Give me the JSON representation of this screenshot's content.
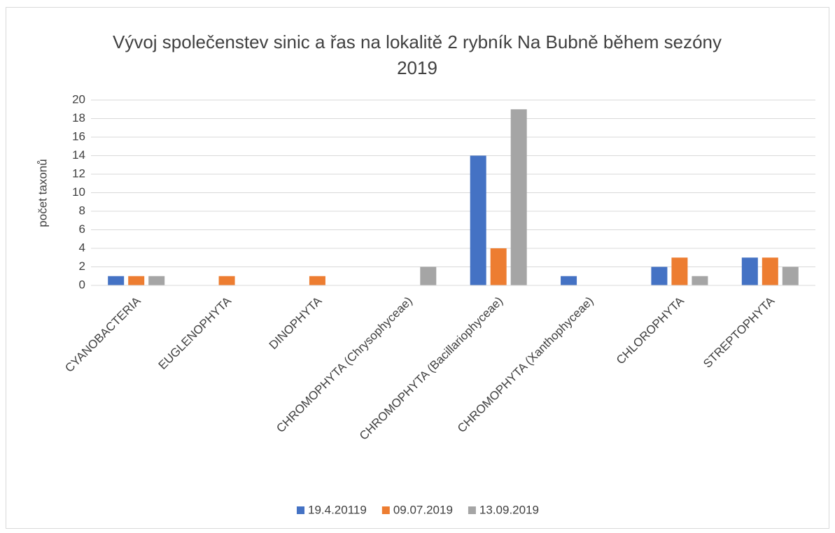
{
  "chart_data": {
    "type": "bar",
    "title": "Vývoj společenstev sinic a řas na lokalitě 2 rybník Na Bubně během sezóny 2019",
    "y_label": "počet taxonů",
    "categories": [
      "CYANOBACTERIA",
      "EUGLENOPHYTA",
      "DINOPHYTA",
      "CHROMOPHYTA (Chrysophyceae)",
      "CHROMOPHYTA (Bacillariophyceae)",
      "CHROMOPHYTA (Xanthophyceae)",
      "CHLOROPHYTA",
      "STREPTOPHYTA"
    ],
    "series": [
      {
        "name": "19.4.20119",
        "color": "#4472c4",
        "values": [
          1,
          0,
          0,
          0,
          14,
          1,
          2,
          3
        ]
      },
      {
        "name": "09.07.2019",
        "color": "#ed7d31",
        "values": [
          1,
          1,
          1,
          0,
          4,
          0,
          3,
          3
        ]
      },
      {
        "name": "13.09.2019",
        "color": "#a5a5a5",
        "values": [
          1,
          0,
          0,
          2,
          19,
          0,
          1,
          2
        ]
      }
    ],
    "ylim": [
      0,
      20
    ],
    "yticks": [
      0,
      2,
      4,
      6,
      8,
      10,
      12,
      14,
      16,
      18,
      20
    ],
    "grid": true,
    "legend": "bottom"
  }
}
